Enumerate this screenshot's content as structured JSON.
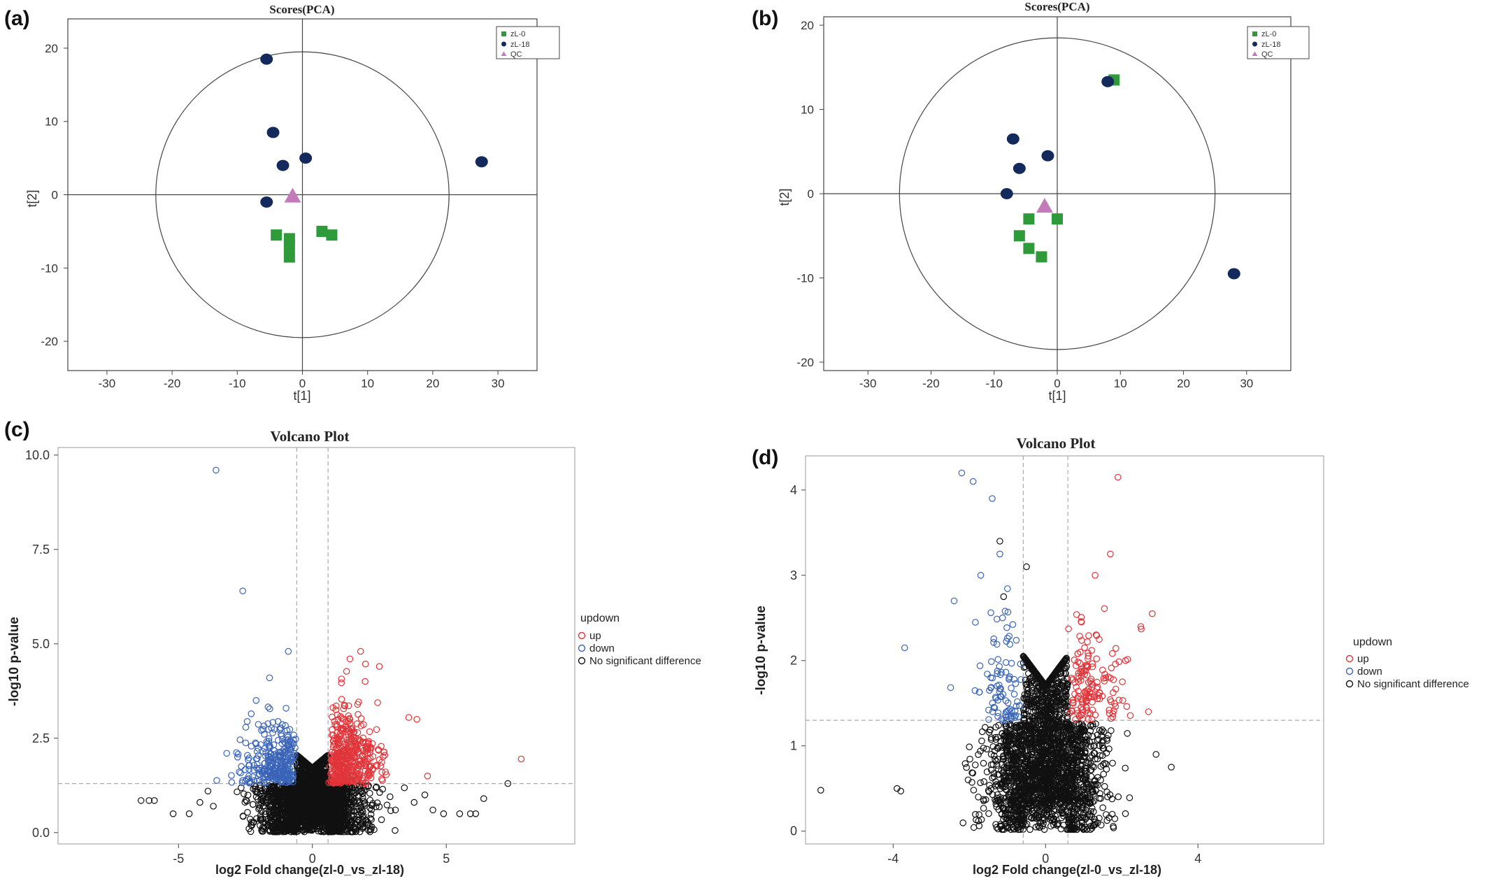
{
  "figure": {
    "panels": [
      "(a)",
      "(b)",
      "(c)",
      "(d)"
    ]
  },
  "chart_data": [
    {
      "panel": "(a)",
      "type": "scatter",
      "title": "Scores(PCA)",
      "xlabel": "t[1]",
      "ylabel": "t[2]",
      "xlim": [
        -36,
        36
      ],
      "ylim": [
        -24,
        24
      ],
      "xticks": [
        -30,
        -20,
        -10,
        0,
        10,
        20,
        30
      ],
      "yticks": [
        -20,
        -10,
        0,
        10,
        20
      ],
      "ellipse": {
        "rx": 22.5,
        "ry": 19.5
      },
      "legend": [
        "zL-0",
        "zL-18",
        "QC"
      ],
      "legend_position": "top-right",
      "series": [
        {
          "name": "zL-0",
          "marker": "square",
          "color": "#2e9a3a",
          "points": [
            [
              -4,
              -5.5
            ],
            [
              -2,
              -6
            ],
            [
              -2,
              -7
            ],
            [
              -2,
              -8.5
            ],
            [
              3,
              -5
            ],
            [
              4.5,
              -5.5
            ]
          ]
        },
        {
          "name": "zL-18",
          "marker": "ellipse",
          "color": "#142a5c",
          "points": [
            [
              -5.5,
              18.5
            ],
            [
              -4.5,
              8.5
            ],
            [
              -3,
              4
            ],
            [
              0.5,
              5
            ],
            [
              -5.5,
              -1
            ],
            [
              27.5,
              4.5
            ]
          ]
        },
        {
          "name": "QC",
          "marker": "triangle",
          "color": "#c27ab8",
          "points": [
            [
              -1.5,
              -0.2
            ]
          ]
        }
      ]
    },
    {
      "panel": "(b)",
      "type": "scatter",
      "title": "Scores(PCA)",
      "xlabel": "t[1]",
      "ylabel": "t[2]",
      "xlim": [
        -37,
        37
      ],
      "ylim": [
        -21,
        21
      ],
      "xticks": [
        -30,
        -20,
        -10,
        0,
        10,
        20,
        30
      ],
      "yticks": [
        -20,
        -10,
        0,
        10,
        20
      ],
      "ellipse": {
        "rx": 25,
        "ry": 18.5
      },
      "legend": [
        "zL-0",
        "zL-18",
        "QC"
      ],
      "legend_position": "top-right",
      "series": [
        {
          "name": "zL-0",
          "marker": "square",
          "color": "#2e9a3a",
          "points": [
            [
              -4.5,
              -3
            ],
            [
              -6,
              -5
            ],
            [
              -4.5,
              -6.5
            ],
            [
              -2.5,
              -7.5
            ],
            [
              0,
              -3
            ],
            [
              9,
              13.5
            ]
          ]
        },
        {
          "name": "zL-18",
          "marker": "ellipse",
          "color": "#142a5c",
          "points": [
            [
              -7,
              6.5
            ],
            [
              -6,
              3
            ],
            [
              -1.5,
              4.5
            ],
            [
              -8,
              0
            ],
            [
              8,
              13.3
            ],
            [
              28,
              -9.5
            ]
          ]
        },
        {
          "name": "QC",
          "marker": "triangle",
          "color": "#c27ab8",
          "points": [
            [
              -2,
              -1.5
            ]
          ]
        }
      ]
    },
    {
      "panel": "(c)",
      "type": "scatter",
      "title": "Volcano Plot",
      "xlabel": "log2 Fold change(zl-0_vs_zl-18)",
      "ylabel": "-log10 p-value",
      "xlim": [
        -9.5,
        9.8
      ],
      "ylim": [
        -0.3,
        10.2
      ],
      "xticks": [
        -5,
        0,
        5
      ],
      "ytick_labels": [
        "0.0",
        "2.5",
        "5.0",
        "7.5",
        "10.0"
      ],
      "thresholds": {
        "x": [
          -0.585,
          0.585
        ],
        "y": 1.3
      },
      "legend_title": "updown",
      "legend": [
        "up",
        "down",
        "No significant difference"
      ],
      "legend_position": "right",
      "colors": {
        "up": "#e0353a",
        "down": "#3a64b8",
        "none": "#111111"
      },
      "counts": {
        "up": 420,
        "down": 300,
        "none": 2500
      },
      "outliers": {
        "up": [
          [
            7.8,
            1.95
          ],
          [
            3.6,
            3.05
          ],
          [
            3.9,
            3.0
          ],
          [
            4.3,
            1.5
          ],
          [
            2.5,
            4.4
          ],
          [
            1.8,
            4.8
          ],
          [
            1.4,
            4.6
          ]
        ],
        "down": [
          [
            -3.6,
            9.6
          ],
          [
            -2.6,
            6.4
          ],
          [
            -0.9,
            4.8
          ],
          [
            -2.1,
            3.5
          ],
          [
            -3.2,
            2.1
          ],
          [
            -1.6,
            4.1
          ]
        ],
        "none": [
          [
            -6.4,
            0.85
          ],
          [
            -6.1,
            0.85
          ],
          [
            -5.9,
            0.85
          ],
          [
            -5.2,
            0.5
          ],
          [
            -4.6,
            0.5
          ],
          [
            -4.2,
            0.8
          ],
          [
            7.3,
            1.3
          ],
          [
            6.4,
            0.9
          ],
          [
            6.1,
            0.5
          ],
          [
            5.9,
            0.5
          ],
          [
            5.5,
            0.5
          ],
          [
            4.9,
            0.5
          ],
          [
            4.5,
            0.6
          ],
          [
            4.2,
            1.0
          ],
          [
            3.8,
            0.8
          ],
          [
            -3.9,
            1.1
          ],
          [
            -3.7,
            0.7
          ],
          [
            2.9,
            0.95
          ],
          [
            3.1,
            0.6
          ]
        ]
      }
    },
    {
      "panel": "(d)",
      "type": "scatter",
      "title": "Volcano Plot",
      "xlabel": "log2 Fold change(zl-0_vs_zl-18)",
      "ylabel": "-log10 p-value",
      "xlim": [
        -6.3,
        7.3
      ],
      "ylim": [
        -0.15,
        4.4
      ],
      "xticks": [
        -4,
        0,
        4
      ],
      "yticks": [
        0,
        1,
        2,
        3,
        4
      ],
      "thresholds": {
        "x": [
          -0.585,
          0.585
        ],
        "y": 1.3
      },
      "legend_title": "updown",
      "legend": [
        "up",
        "down",
        "No significant difference"
      ],
      "legend_position": "right",
      "colors": {
        "up": "#e0353a",
        "down": "#3a64b8",
        "none": "#111111"
      },
      "counts": {
        "up": 150,
        "down": 90,
        "none": 2600
      },
      "outliers": {
        "up": [
          [
            1.9,
            4.15
          ],
          [
            1.7,
            3.25
          ],
          [
            1.3,
            3.0
          ],
          [
            2.8,
            2.55
          ],
          [
            2.5,
            2.4
          ],
          [
            2.7,
            1.4
          ],
          [
            2.1,
            2.0
          ]
        ],
        "down": [
          [
            -2.2,
            4.2
          ],
          [
            -1.9,
            4.1
          ],
          [
            -1.4,
            3.9
          ],
          [
            -1.2,
            3.25
          ],
          [
            -3.7,
            2.15
          ],
          [
            -2.4,
            2.7
          ],
          [
            -1.7,
            3.0
          ]
        ],
        "none": [
          [
            -5.9,
            0.48
          ],
          [
            -3.8,
            0.47
          ],
          [
            -1.2,
            3.4
          ],
          [
            3.3,
            0.75
          ],
          [
            -1.1,
            2.75
          ],
          [
            -0.5,
            3.1
          ],
          [
            -3.9,
            0.5
          ],
          [
            2.9,
            0.9
          ]
        ]
      }
    }
  ]
}
